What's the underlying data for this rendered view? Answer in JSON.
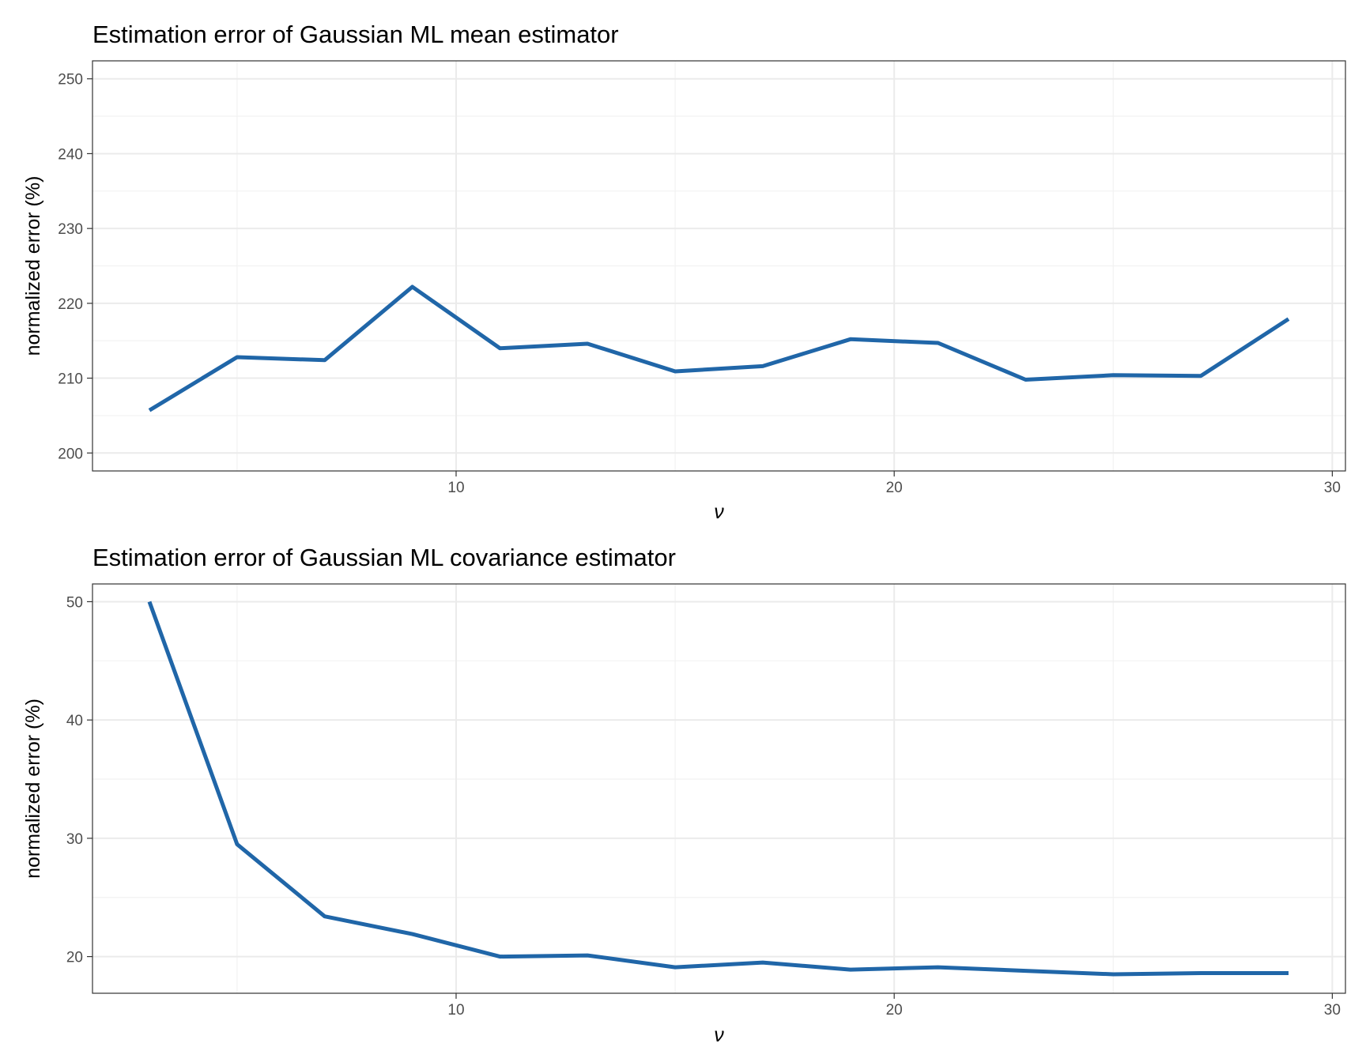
{
  "chart_data": [
    {
      "type": "line",
      "title": "Estimation error of Gaussian ML mean estimator",
      "xlabel": "ν",
      "ylabel": "normalized error (%)",
      "xlim": [
        1.7,
        30.3
      ],
      "ylim": [
        197.6,
        252.4
      ],
      "x_ticks": [
        10,
        20,
        30
      ],
      "y_ticks": [
        200,
        210,
        220,
        230,
        240,
        250
      ],
      "grid": true,
      "color": "#2066a8",
      "series": [
        {
          "x": [
            3,
            5,
            7,
            9,
            11,
            13,
            15,
            17,
            19,
            21,
            23,
            25,
            27,
            29
          ],
          "values": [
            205.7,
            212.8,
            212.4,
            222.2,
            214.0,
            214.6,
            210.9,
            211.6,
            215.2,
            214.7,
            209.8,
            210.4,
            210.3,
            217.9
          ]
        }
      ]
    },
    {
      "type": "line",
      "title": "Estimation error of Gaussian ML covariance estimator",
      "xlabel": "ν",
      "ylabel": "normalized error (%)",
      "xlim": [
        1.7,
        30.3
      ],
      "ylim": [
        16.9,
        51.5
      ],
      "x_ticks": [
        10,
        20,
        30
      ],
      "y_ticks": [
        20,
        30,
        40,
        50
      ],
      "grid": true,
      "color": "#2066a8",
      "series": [
        {
          "x": [
            3,
            5,
            7,
            9,
            11,
            13,
            15,
            17,
            19,
            21,
            23,
            25,
            27,
            29
          ],
          "values": [
            50.0,
            29.5,
            23.4,
            21.9,
            20.0,
            20.1,
            19.1,
            19.5,
            18.9,
            19.1,
            18.8,
            18.5,
            18.6,
            18.6
          ]
        }
      ]
    }
  ]
}
